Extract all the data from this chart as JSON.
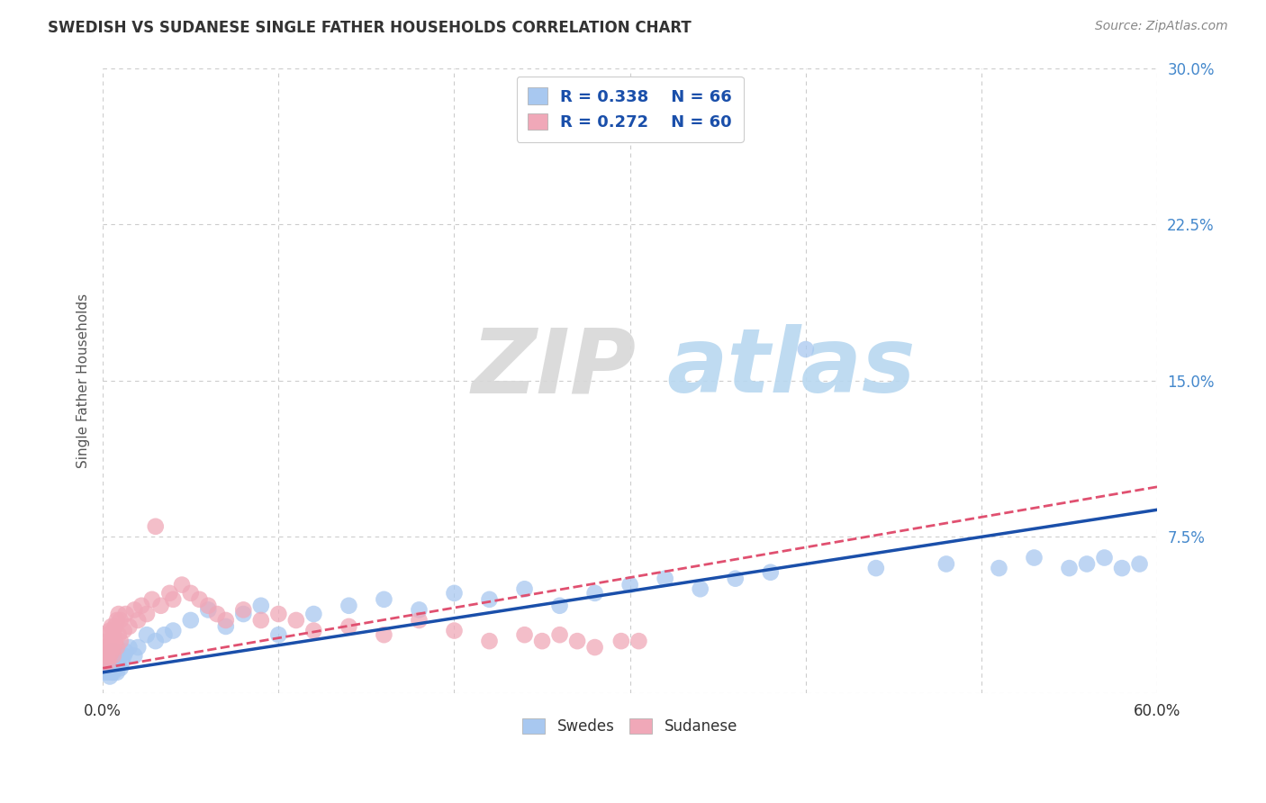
{
  "title": "SWEDISH VS SUDANESE SINGLE FATHER HOUSEHOLDS CORRELATION CHART",
  "source": "Source: ZipAtlas.com",
  "ylabel": "Single Father Households",
  "x_min": 0.0,
  "x_max": 0.6,
  "y_min": 0.0,
  "y_max": 0.3,
  "x_ticks": [
    0.0,
    0.1,
    0.2,
    0.3,
    0.4,
    0.5,
    0.6
  ],
  "y_ticks": [
    0.0,
    0.075,
    0.15,
    0.225,
    0.3
  ],
  "y_tick_labels": [
    "",
    "7.5%",
    "15.0%",
    "22.5%",
    "30.0%"
  ],
  "swedes_color": "#a8c8f0",
  "sudanese_color": "#f0a8b8",
  "swedes_line_color": "#1a4faa",
  "sudanese_line_color": "#e05070",
  "r_swedes": 0.338,
  "n_swedes": 66,
  "r_sudanese": 0.272,
  "n_sudanese": 60,
  "background_color": "#ffffff",
  "grid_color": "#cccccc",
  "tick_color": "#4488cc",
  "swedes_x": [
    0.001,
    0.002,
    0.002,
    0.003,
    0.003,
    0.003,
    0.004,
    0.004,
    0.004,
    0.005,
    0.005,
    0.005,
    0.005,
    0.006,
    0.006,
    0.006,
    0.007,
    0.007,
    0.007,
    0.008,
    0.008,
    0.008,
    0.009,
    0.009,
    0.01,
    0.01,
    0.011,
    0.012,
    0.013,
    0.015,
    0.018,
    0.02,
    0.025,
    0.03,
    0.035,
    0.04,
    0.05,
    0.06,
    0.07,
    0.08,
    0.09,
    0.1,
    0.12,
    0.14,
    0.16,
    0.18,
    0.2,
    0.22,
    0.24,
    0.26,
    0.28,
    0.3,
    0.32,
    0.34,
    0.36,
    0.38,
    0.4,
    0.44,
    0.48,
    0.51,
    0.53,
    0.55,
    0.56,
    0.57,
    0.58,
    0.59
  ],
  "swedes_y": [
    0.01,
    0.012,
    0.015,
    0.01,
    0.013,
    0.018,
    0.008,
    0.012,
    0.015,
    0.01,
    0.013,
    0.016,
    0.02,
    0.01,
    0.014,
    0.018,
    0.012,
    0.015,
    0.02,
    0.01,
    0.015,
    0.018,
    0.013,
    0.017,
    0.012,
    0.018,
    0.015,
    0.018,
    0.02,
    0.022,
    0.018,
    0.022,
    0.028,
    0.025,
    0.028,
    0.03,
    0.035,
    0.04,
    0.032,
    0.038,
    0.042,
    0.028,
    0.038,
    0.042,
    0.045,
    0.04,
    0.048,
    0.045,
    0.05,
    0.042,
    0.048,
    0.052,
    0.055,
    0.05,
    0.055,
    0.058,
    0.165,
    0.06,
    0.062,
    0.06,
    0.065,
    0.06,
    0.062,
    0.065,
    0.06,
    0.062
  ],
  "sudanese_x": [
    0.001,
    0.001,
    0.002,
    0.002,
    0.002,
    0.003,
    0.003,
    0.003,
    0.004,
    0.004,
    0.004,
    0.005,
    0.005,
    0.005,
    0.006,
    0.006,
    0.006,
    0.007,
    0.007,
    0.008,
    0.008,
    0.009,
    0.009,
    0.01,
    0.01,
    0.012,
    0.013,
    0.015,
    0.018,
    0.02,
    0.022,
    0.025,
    0.028,
    0.03,
    0.033,
    0.038,
    0.04,
    0.045,
    0.05,
    0.055,
    0.06,
    0.065,
    0.07,
    0.08,
    0.09,
    0.1,
    0.11,
    0.12,
    0.14,
    0.16,
    0.18,
    0.2,
    0.22,
    0.24,
    0.25,
    0.26,
    0.27,
    0.28,
    0.295,
    0.305
  ],
  "sudanese_y": [
    0.015,
    0.02,
    0.018,
    0.022,
    0.028,
    0.015,
    0.02,
    0.025,
    0.018,
    0.023,
    0.03,
    0.02,
    0.025,
    0.032,
    0.018,
    0.022,
    0.03,
    0.025,
    0.032,
    0.022,
    0.035,
    0.028,
    0.038,
    0.025,
    0.035,
    0.03,
    0.038,
    0.032,
    0.04,
    0.035,
    0.042,
    0.038,
    0.045,
    0.08,
    0.042,
    0.048,
    0.045,
    0.052,
    0.048,
    0.045,
    0.042,
    0.038,
    0.035,
    0.04,
    0.035,
    0.038,
    0.035,
    0.03,
    0.032,
    0.028,
    0.035,
    0.03,
    0.025,
    0.028,
    0.025,
    0.028,
    0.025,
    0.022,
    0.025,
    0.025
  ]
}
